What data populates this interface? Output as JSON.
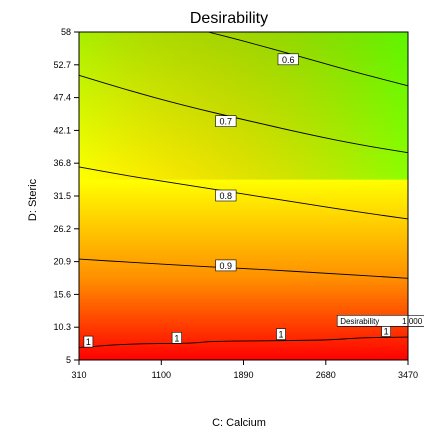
{
  "chart_data": {
    "type": "heatmap",
    "title": "Desirability",
    "xlabel": "C: Calcium",
    "ylabel": "D: Steric",
    "xlim": [
      310,
      3470
    ],
    "ylim": [
      5,
      58
    ],
    "x_ticks": [
      "310",
      "1100",
      "1890",
      "2680",
      "3470"
    ],
    "y_ticks": [
      "5",
      "10.3",
      "15.6",
      "20.9",
      "26.2",
      "31.5",
      "36.8",
      "42.1",
      "47.4",
      "52.7",
      "58"
    ],
    "color_scale": {
      "low": "#ff0000",
      "mid": "#ffff00",
      "high": "#00ff00"
    },
    "contours": [
      {
        "level": "0.6",
        "label_pos": [
          2320,
          53.5
        ],
        "points": [
          [
            1550,
            58
          ],
          [
            1900,
            56.5
          ],
          [
            2400,
            54.2
          ],
          [
            2900,
            51.8
          ],
          [
            3470,
            49.3
          ]
        ]
      },
      {
        "level": "0.7",
        "label_pos": [
          1720,
          43.5
        ],
        "points": [
          [
            310,
            51
          ],
          [
            800,
            48.5
          ],
          [
            1300,
            46.2
          ],
          [
            1900,
            43.8
          ],
          [
            2500,
            41.5
          ],
          [
            3000,
            39.8
          ],
          [
            3470,
            38.5
          ]
        ]
      },
      {
        "level": "0.8",
        "label_pos": [
          1720,
          31.5
        ],
        "points": [
          [
            310,
            36.2
          ],
          [
            800,
            34.7
          ],
          [
            1300,
            33.4
          ],
          [
            1900,
            31.8
          ],
          [
            2500,
            30.2
          ],
          [
            3000,
            28.9
          ],
          [
            3470,
            27.8
          ]
        ]
      },
      {
        "level": "0.9",
        "label_pos": [
          1720,
          20.2
        ],
        "points": [
          [
            310,
            21.3
          ],
          [
            900,
            20.7
          ],
          [
            1500,
            20.1
          ],
          [
            2100,
            19.6
          ],
          [
            2700,
            19.0
          ],
          [
            3470,
            18.2
          ]
        ]
      },
      {
        "level": "1",
        "label_pos": [
          1250,
          8.5
        ],
        "points": [
          [
            310,
            7.0
          ],
          [
            750,
            7.6
          ],
          [
            1400,
            7.7
          ],
          [
            1550,
            8.0
          ],
          [
            2050,
            8.1
          ],
          [
            2700,
            8.2
          ],
          [
            3000,
            8.6
          ],
          [
            3470,
            8.7
          ]
        ]
      }
    ],
    "extra_labels": [
      {
        "text": "1",
        "pos": [
          400,
          7.9
        ]
      },
      {
        "text": "1",
        "pos": [
          2250,
          9.1
        ]
      },
      {
        "text": "1",
        "pos": [
          3260,
          9.6
        ]
      }
    ],
    "annotation": {
      "label": "Desirability",
      "value": "1.000",
      "pos": [
        3280,
        9.8
      ]
    }
  }
}
